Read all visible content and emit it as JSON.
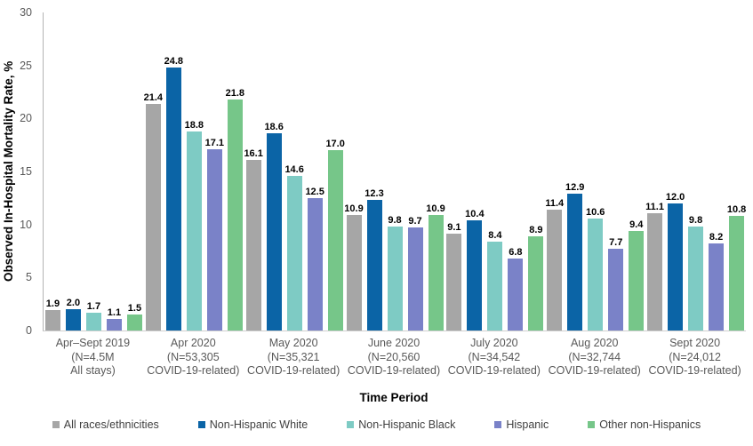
{
  "chart_data": {
    "type": "bar",
    "title": "",
    "ylabel": "Observed In-Hospital Mortality Rate, %",
    "xlabel": "Time Period",
    "ylim": [
      0,
      30
    ],
    "yticks": [
      0,
      5,
      10,
      15,
      20,
      25,
      30
    ],
    "grid": false,
    "legend_position": "bottom",
    "categories": [
      {
        "lines": [
          "Apr–Sept 2019",
          "(N=4.5M",
          "All stays)"
        ],
        "patterned": true
      },
      {
        "lines": [
          "Apr 2020",
          "(N=53,305",
          "COVID-19-related)"
        ],
        "patterned": false
      },
      {
        "lines": [
          "May 2020",
          "(N=35,321",
          "COVID-19-related)"
        ],
        "patterned": false
      },
      {
        "lines": [
          "June 2020",
          "(N=20,560",
          "COVID-19-related)"
        ],
        "patterned": false
      },
      {
        "lines": [
          "July 2020",
          "(N=34,542",
          "COVID-19-related)"
        ],
        "patterned": false
      },
      {
        "lines": [
          "Aug 2020",
          "(N=32,744",
          "COVID-19-related)"
        ],
        "patterned": false
      },
      {
        "lines": [
          "Sept 2020",
          "(N=24,012",
          "COVID-19-related)"
        ],
        "patterned": false
      }
    ],
    "series": [
      {
        "name": "All races/ethnicities",
        "color": "#a6a6a6",
        "values": [
          1.9,
          21.4,
          16.1,
          10.9,
          9.1,
          11.4,
          11.1
        ]
      },
      {
        "name": "Non-Hispanic White",
        "color": "#0b64a6",
        "values": [
          2.0,
          24.8,
          18.6,
          12.3,
          10.4,
          12.9,
          12.0
        ]
      },
      {
        "name": "Non-Hispanic Black",
        "color": "#7ecbc4",
        "values": [
          1.7,
          18.8,
          14.6,
          9.8,
          8.4,
          10.6,
          9.8
        ]
      },
      {
        "name": "Hispanic",
        "color": "#7a82c8",
        "values": [
          1.1,
          17.1,
          12.5,
          9.7,
          6.8,
          7.7,
          8.2
        ]
      },
      {
        "name": "Other non-Hispanics",
        "color": "#76c689",
        "values": [
          1.5,
          21.8,
          17.0,
          10.9,
          8.9,
          9.4,
          10.8
        ]
      }
    ]
  }
}
